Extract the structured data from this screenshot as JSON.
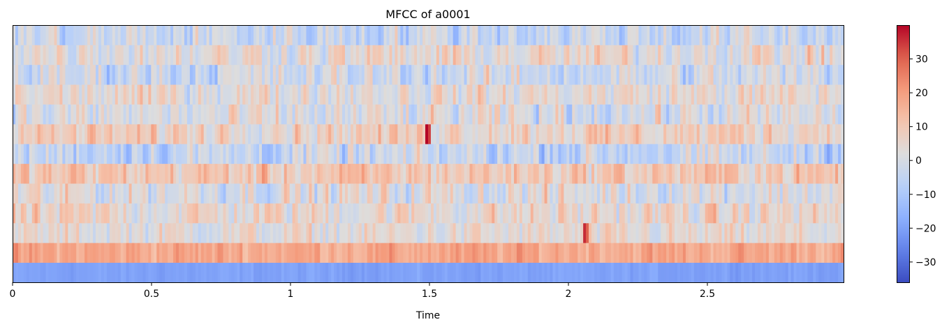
{
  "chart_data": {
    "type": "heatmap",
    "title": "MFCC of a0001",
    "xlabel": "Time",
    "ylabel": "",
    "xlim": [
      0,
      2.99
    ],
    "x_ticks": [
      0,
      0.5,
      1,
      1.5,
      2,
      2.5
    ],
    "x_tick_labels": [
      "0",
      "0.5",
      "1",
      "1.5",
      "2",
      "2.5"
    ],
    "y_ticks": [],
    "n_coefficients": 13,
    "n_frames": 300,
    "colormap": "coolwarm",
    "colorbar": {
      "vmin": -36,
      "vmax": 40,
      "ticks": [
        -30,
        -20,
        -10,
        0,
        10,
        20,
        30
      ],
      "tick_labels": [
        "−30",
        "−20",
        "−10",
        "0",
        "10",
        "20",
        "30"
      ]
    },
    "row_mean_values": [
      -20,
      18,
      3,
      5,
      2,
      10,
      -4,
      8,
      0,
      4,
      -2,
      4,
      -3
    ],
    "row_spread_values": [
      2,
      6,
      9,
      11,
      12,
      10,
      12,
      10,
      12,
      10,
      12,
      11,
      12
    ],
    "notable_peaks": [
      {
        "time": 1.49,
        "coefficient": 7,
        "value": 40
      },
      {
        "time": 2.05,
        "coefficient": 2,
        "value": 36
      }
    ]
  }
}
